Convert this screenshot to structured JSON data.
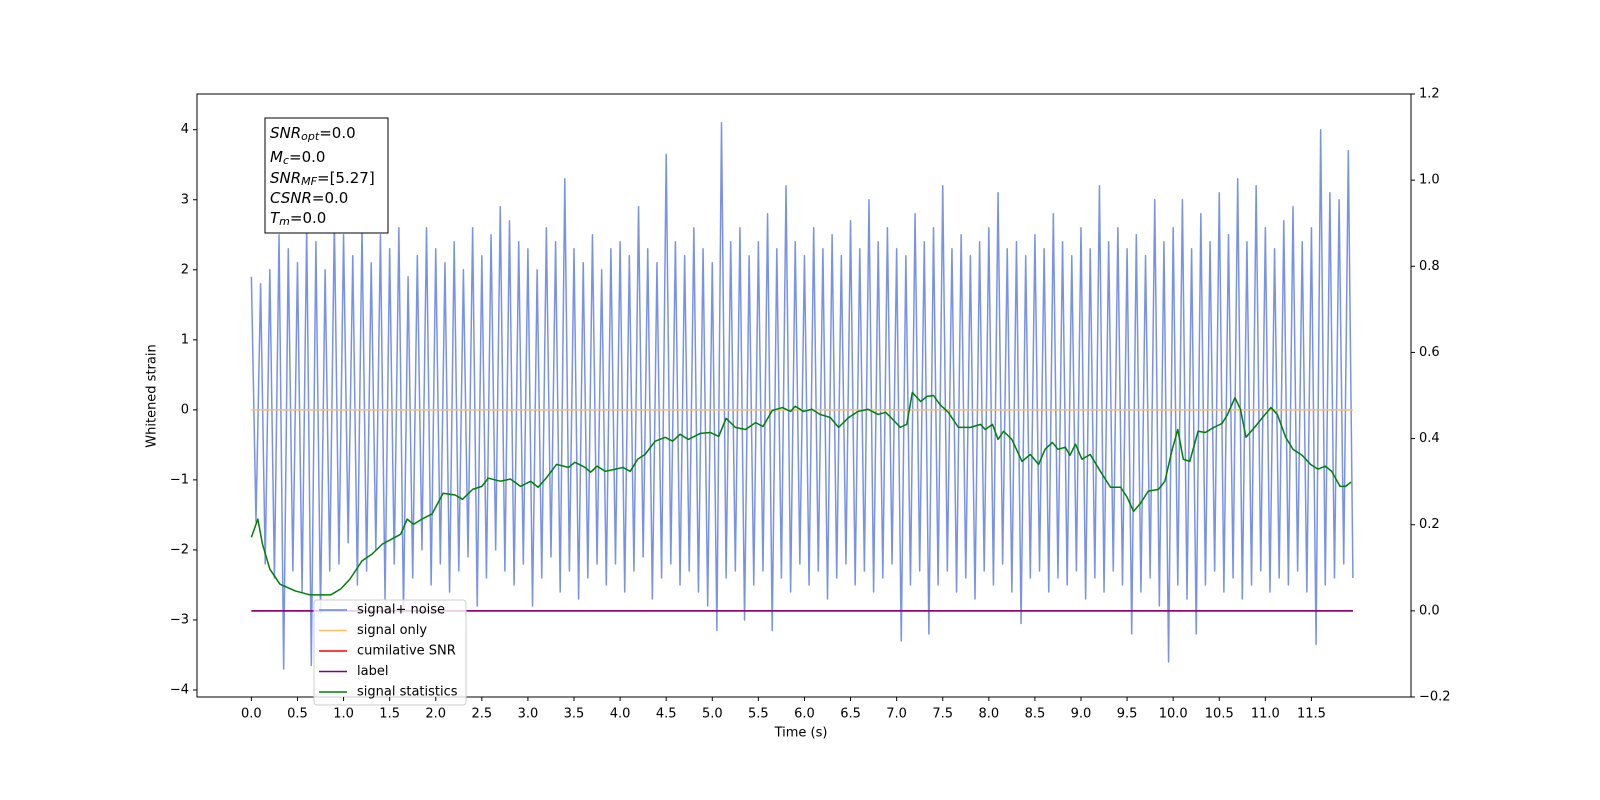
{
  "chart_data": {
    "type": "line",
    "xlabel": "Time (s)",
    "ylabel": "Whitened strain",
    "xlim": [
      -0.59,
      12.58
    ],
    "ylim": [
      -4.1,
      4.51
    ],
    "y2lim": [
      -0.2,
      1.2
    ],
    "xticks": [
      {
        "value": 0,
        "label": "0.0"
      },
      0.5,
      {
        "value": 1,
        "label": "1.0"
      },
      1.5,
      {
        "value": 2,
        "label": "2.0"
      },
      2.5,
      {
        "value": 3,
        "label": "3.0"
      },
      3.5,
      {
        "value": 4,
        "label": "4.0"
      },
      4.5,
      {
        "value": 5,
        "label": "5.0"
      },
      5.5,
      {
        "value": 6,
        "label": "6.0"
      },
      6.5,
      {
        "value": 7,
        "label": "7.0"
      },
      7.5,
      {
        "value": 8,
        "label": "8.0"
      },
      8.5,
      {
        "value": 9,
        "label": "9.0"
      },
      9.5,
      {
        "value": 10,
        "label": "10.0"
      },
      10.5,
      {
        "value": 11,
        "label": "11.0"
      },
      11.5
    ],
    "yticks": [
      {
        "value": -4,
        "label": "−4"
      },
      {
        "value": -3,
        "label": "−3"
      },
      {
        "value": -2,
        "label": "−2"
      },
      {
        "value": -1,
        "label": "−1"
      },
      0,
      1,
      2,
      3,
      4
    ],
    "y2ticks": [
      {
        "value": -0.2,
        "label": "−0.2"
      },
      {
        "value": 0,
        "label": "0.0"
      },
      {
        "value": 0.2,
        "label": "0.2"
      },
      {
        "value": 0.4,
        "label": "0.4"
      },
      {
        "value": 0.6,
        "label": "0.6"
      },
      {
        "value": 0.8,
        "label": "0.8"
      },
      {
        "value": 1,
        "label": "1.0"
      },
      {
        "value": 1.2,
        "label": "1.2"
      }
    ],
    "annotation": [
      {
        "name": "SNR",
        "sub": "opt",
        "text": "=0.0"
      },
      {
        "name": "M",
        "sub": "c",
        "text": "=0.0"
      },
      {
        "name": "SNR",
        "sub": "MF",
        "text": "=[5.27]"
      },
      {
        "name": "CSNR",
        "text": "=0.0"
      },
      {
        "name": "T",
        "sub": "m",
        "text": "=0.0"
      }
    ],
    "legend": "lower left",
    "series": [
      {
        "name": "signal+ noise",
        "color": "#6a86e6",
        "x": [
          0,
          0.05,
          0.1,
          0.15,
          0.2,
          0.25,
          0.3,
          0.35,
          0.4,
          0.45,
          0.5,
          0.55,
          0.6,
          0.65,
          0.7,
          0.75,
          0.8,
          0.85,
          0.9,
          0.95,
          1,
          1.05,
          1.1,
          1.15,
          1.2,
          1.25,
          1.3,
          1.35,
          1.4,
          1.45,
          1.5,
          1.55,
          1.6,
          1.65,
          1.7,
          1.75,
          1.8,
          1.85,
          1.9,
          1.95,
          2,
          2.05,
          2.1,
          2.15,
          2.2,
          2.25,
          2.3,
          2.35,
          2.4,
          2.45,
          2.5,
          2.55,
          2.6,
          2.65,
          2.7,
          2.75,
          2.8,
          2.85,
          2.9,
          2.95,
          3,
          3.05,
          3.1,
          3.15,
          3.2,
          3.25,
          3.3,
          3.35,
          3.4,
          3.45,
          3.5,
          3.55,
          3.6,
          3.65,
          3.7,
          3.75,
          3.8,
          3.85,
          3.9,
          3.95,
          4,
          4.05,
          4.1,
          4.15,
          4.2,
          4.25,
          4.3,
          4.35,
          4.4,
          4.45,
          4.5,
          4.55,
          4.6,
          4.65,
          4.7,
          4.75,
          4.8,
          4.85,
          4.9,
          4.95,
          5,
          5.05,
          5.1,
          5.15,
          5.2,
          5.25,
          5.3,
          5.35,
          5.4,
          5.45,
          5.5,
          5.55,
          5.6,
          5.65,
          5.7,
          5.75,
          5.8,
          5.85,
          5.9,
          5.95,
          6,
          6.05,
          6.1,
          6.15,
          6.2,
          6.25,
          6.3,
          6.35,
          6.4,
          6.45,
          6.5,
          6.55,
          6.6,
          6.65,
          6.7,
          6.75,
          6.8,
          6.85,
          6.9,
          6.95,
          7,
          7.05,
          7.1,
          7.15,
          7.2,
          7.25,
          7.3,
          7.35,
          7.4,
          7.45,
          7.5,
          7.55,
          7.6,
          7.65,
          7.7,
          7.75,
          7.8,
          7.85,
          7.9,
          7.95,
          8,
          8.05,
          8.1,
          8.15,
          8.2,
          8.25,
          8.3,
          8.35,
          8.4,
          8.45,
          8.5,
          8.55,
          8.6,
          8.65,
          8.7,
          8.75,
          8.8,
          8.85,
          8.9,
          8.95,
          9,
          9.05,
          9.1,
          9.15,
          9.2,
          9.25,
          9.3,
          9.35,
          9.4,
          9.45,
          9.5,
          9.55,
          9.6,
          9.65,
          9.7,
          9.75,
          9.8,
          9.85,
          9.9,
          9.95,
          10,
          10.05,
          10.1,
          10.15,
          10.2,
          10.25,
          10.3,
          10.35,
          10.4,
          10.45,
          10.5,
          10.55,
          10.6,
          10.65,
          10.7,
          10.75,
          10.8,
          10.85,
          10.9,
          10.95,
          11,
          11.05,
          11.1,
          11.15,
          11.2,
          11.25,
          11.3,
          11.35,
          11.4,
          11.45,
          11.5,
          11.55,
          11.6,
          11.65,
          11.7,
          11.75,
          11.8,
          11.85,
          11.9,
          11.95
        ],
        "values": [
          1.9,
          -1.6,
          1.8,
          -2.2,
          2.0,
          -2.4,
          2.5,
          -3.7,
          2.3,
          -2.3,
          2.1,
          -2.6,
          2.6,
          -3.65,
          2.4,
          -2.9,
          2.0,
          -2.3,
          2.7,
          -2.2,
          2.5,
          -1.9,
          2.2,
          -2.5,
          2.6,
          -2.3,
          2.1,
          -2.0,
          2.5,
          -2.7,
          2.3,
          -2.2,
          2.6,
          -2.9,
          1.9,
          -2.4,
          2.2,
          -2.0,
          2.6,
          -2.5,
          2.3,
          -2.2,
          2.1,
          -2.6,
          2.4,
          -2.3,
          2.0,
          -2.1,
          2.6,
          -2.8,
          2.2,
          -2.4,
          2.5,
          -2.0,
          2.9,
          -2.3,
          2.7,
          -2.5,
          2.4,
          -2.2,
          2.3,
          -2.8,
          2.0,
          -2.4,
          2.6,
          -2.1,
          2.4,
          -2.6,
          3.3,
          -2.3,
          2.3,
          -2.7,
          2.1,
          -2.4,
          2.5,
          -2.2,
          2.0,
          -2.5,
          2.3,
          -2.2,
          2.4,
          -2.6,
          2.2,
          -2.3,
          2.9,
          -2.1,
          2.3,
          -2.7,
          2.1,
          -2.4,
          3.65,
          -2.2,
          2.4,
          -2.5,
          2.2,
          -2.3,
          2.6,
          -2.6,
          2.3,
          -2.8,
          2.1,
          -3.15,
          4.1,
          -2.4,
          2.4,
          -2.3,
          2.6,
          -3.0,
          2.2,
          -2.5,
          2.4,
          -2.3,
          2.8,
          -3.15,
          2.3,
          -2.4,
          3.2,
          -2.6,
          2.4,
          -2.2,
          2.2,
          -2.5,
          2.6,
          -2.3,
          2.3,
          -2.7,
          2.5,
          -2.4,
          2.2,
          -2.2,
          2.7,
          -2.5,
          2.3,
          -2.3,
          3.0,
          -2.6,
          2.4,
          -2.4,
          2.6,
          -2.2,
          2.3,
          -3.3,
          2.2,
          -2.5,
          2.8,
          -2.3,
          2.4,
          -3.2,
          2.6,
          -2.5,
          3.2,
          -2.3,
          2.3,
          -2.6,
          2.5,
          -2.4,
          2.2,
          -2.7,
          2.4,
          -2.3,
          2.6,
          -2.5,
          3.1,
          -2.2,
          2.3,
          -2.6,
          2.4,
          -3.05,
          2.2,
          -2.4,
          2.5,
          -2.3,
          2.3,
          -2.6,
          2.8,
          -2.4,
          2.4,
          -2.5,
          2.2,
          -2.3,
          2.6,
          -2.7,
          2.3,
          -2.4,
          3.2,
          -2.6,
          2.4,
          -2.3,
          2.6,
          -2.5,
          2.3,
          -3.2,
          2.5,
          -2.6,
          2.2,
          -2.4,
          3.0,
          -2.8,
          2.4,
          -3.6,
          2.6,
          -2.5,
          3.0,
          -2.7,
          2.3,
          -3.2,
          2.8,
          -2.5,
          2.4,
          -2.3,
          3.1,
          -2.6,
          2.5,
          -2.4,
          3.3,
          -2.7,
          2.4,
          -2.5,
          3.2,
          -2.3,
          2.6,
          -2.6,
          2.3,
          -2.4,
          2.7,
          -2.5,
          2.9,
          -2.3,
          2.4,
          -2.6,
          2.6,
          -3.35,
          4.0,
          -2.5,
          3.1,
          -2.4,
          3.0,
          -2.2,
          3.7,
          -2.4
        ]
      },
      {
        "name": "signal only",
        "color": "#ffbf66",
        "x": [
          0,
          11.95
        ],
        "values": [
          0,
          0
        ]
      },
      {
        "name": "cumilative SNR",
        "color": "#ff0000",
        "axis": "y2",
        "x": [
          0,
          11.95
        ],
        "values": [
          0,
          0
        ]
      },
      {
        "name": "label",
        "color": "#800080",
        "axis": "y2",
        "x": [
          0,
          11.95
        ],
        "values": [
          0,
          0
        ]
      },
      {
        "name": "signal statistics",
        "color": "#008000",
        "axis": "y2",
        "x": [
          0,
          0.07,
          0.12,
          0.2,
          0.31,
          0.48,
          0.64,
          0.86,
          0.97,
          1.07,
          1.2,
          1.31,
          1.42,
          1.56,
          1.62,
          1.69,
          1.76,
          1.85,
          1.96,
          2.08,
          2.21,
          2.29,
          2.4,
          2.5,
          2.57,
          2.7,
          2.81,
          2.92,
          3.03,
          3.11,
          3.19,
          3.31,
          3.44,
          3.51,
          3.62,
          3.68,
          3.75,
          3.84,
          3.95,
          4.03,
          4.11,
          4.19,
          4.27,
          4.38,
          4.49,
          4.57,
          4.65,
          4.74,
          4.87,
          4.98,
          5.07,
          5.15,
          5.25,
          5.36,
          5.47,
          5.55,
          5.65,
          5.76,
          5.85,
          5.9,
          5.99,
          6.08,
          6.17,
          6.28,
          6.37,
          6.48,
          6.58,
          6.69,
          6.8,
          6.88,
          6.96,
          7.04,
          7.11,
          7.17,
          7.26,
          7.33,
          7.4,
          7.47,
          7.56,
          7.67,
          7.8,
          7.91,
          7.96,
          8.04,
          8.1,
          8.16,
          8.25,
          8.36,
          8.45,
          8.54,
          8.61,
          8.69,
          8.75,
          8.83,
          8.88,
          8.94,
          9.01,
          9.1,
          9.21,
          9.32,
          9.43,
          9.5,
          9.57,
          9.64,
          9.73,
          9.84,
          9.91,
          9.99,
          10.05,
          10.11,
          10.18,
          10.27,
          10.35,
          10.44,
          10.53,
          10.59,
          10.67,
          10.73,
          10.79,
          10.89,
          10.97,
          11.06,
          11.13,
          11.22,
          11.3,
          11.4,
          11.49,
          11.57,
          11.65,
          11.72,
          11.81,
          11.87,
          11.93
        ],
        "values": [
          0.171,
          0.213,
          0.155,
          0.097,
          0.062,
          0.046,
          0.037,
          0.037,
          0.051,
          0.074,
          0.116,
          0.132,
          0.155,
          0.171,
          0.178,
          0.213,
          0.201,
          0.213,
          0.225,
          0.273,
          0.269,
          0.259,
          0.282,
          0.289,
          0.308,
          0.301,
          0.306,
          0.289,
          0.301,
          0.287,
          0.306,
          0.34,
          0.333,
          0.345,
          0.333,
          0.322,
          0.336,
          0.324,
          0.329,
          0.333,
          0.324,
          0.352,
          0.363,
          0.394,
          0.403,
          0.394,
          0.41,
          0.398,
          0.412,
          0.414,
          0.405,
          0.447,
          0.426,
          0.421,
          0.437,
          0.428,
          0.465,
          0.472,
          0.463,
          0.475,
          0.463,
          0.468,
          0.456,
          0.449,
          0.426,
          0.449,
          0.463,
          0.468,
          0.456,
          0.461,
          0.444,
          0.426,
          0.433,
          0.507,
          0.486,
          0.498,
          0.5,
          0.479,
          0.461,
          0.426,
          0.426,
          0.433,
          0.421,
          0.433,
          0.398,
          0.417,
          0.398,
          0.347,
          0.363,
          0.34,
          0.375,
          0.391,
          0.375,
          0.38,
          0.361,
          0.387,
          0.352,
          0.363,
          0.324,
          0.287,
          0.287,
          0.264,
          0.231,
          0.248,
          0.278,
          0.282,
          0.301,
          0.375,
          0.421,
          0.352,
          0.347,
          0.417,
          0.414,
          0.426,
          0.435,
          0.456,
          0.495,
          0.468,
          0.403,
          0.428,
          0.449,
          0.472,
          0.456,
          0.403,
          0.375,
          0.361,
          0.34,
          0.329,
          0.336,
          0.324,
          0.289,
          0.289,
          0.299
        ]
      }
    ]
  }
}
